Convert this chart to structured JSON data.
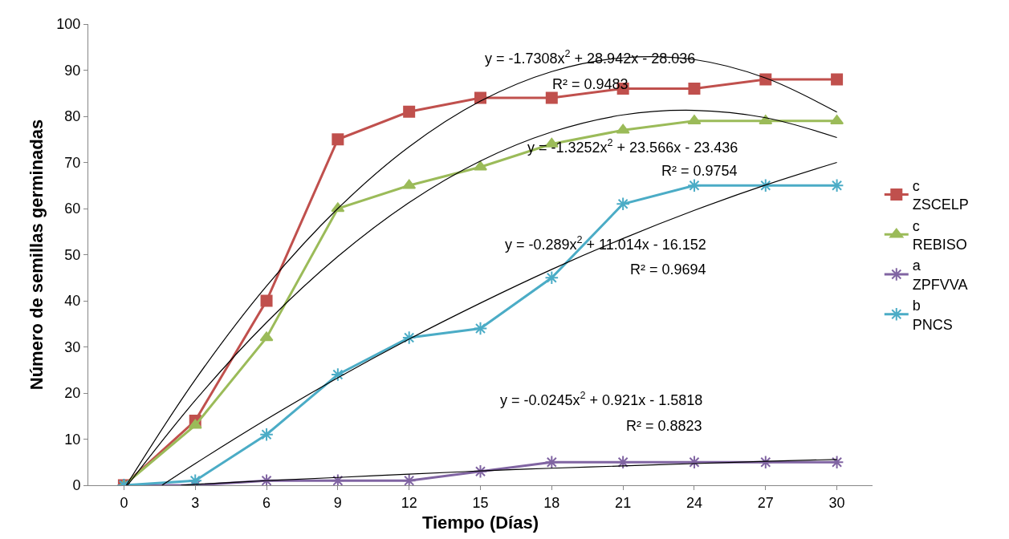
{
  "chart_data": {
    "type": "line",
    "xlabel": "Tiempo (Días)",
    "ylabel": "Número de semillas germinadas",
    "x": [
      0,
      3,
      6,
      9,
      12,
      15,
      18,
      21,
      24,
      27,
      30
    ],
    "xlim": [
      -1.5,
      31.5
    ],
    "xticks": [
      0,
      3,
      6,
      9,
      12,
      15,
      18,
      21,
      24,
      27,
      30
    ],
    "ylim": [
      0,
      100
    ],
    "yticks": [
      0,
      10,
      20,
      30,
      40,
      50,
      60,
      70,
      80,
      90,
      100
    ],
    "grid": false,
    "legend": "right",
    "series": [
      {
        "name": "c\nZSCELP",
        "color": "#c0504d",
        "marker": "square",
        "values": [
          0,
          14,
          40,
          75,
          81,
          84,
          84,
          86,
          86,
          88,
          88
        ]
      },
      {
        "name": "c\nREBISO",
        "color": "#9bbb59",
        "marker": "triangle",
        "values": [
          0,
          13,
          32,
          60,
          65,
          69,
          74,
          77,
          79,
          79,
          79
        ]
      },
      {
        "name": "a\nZPFVVA",
        "color": "#8064a2",
        "marker": "cross",
        "values": [
          0,
          0,
          1,
          1,
          1,
          3,
          5,
          5,
          5,
          5,
          5
        ]
      },
      {
        "name": "b\nPNCS",
        "color": "#4bacc6",
        "marker": "cross",
        "values": [
          0,
          1,
          11,
          24,
          32,
          34,
          45,
          61,
          65,
          65,
          65
        ]
      },
      {
        "type": "line",
        "color": "#000000",
        "marker": "none",
        "x": [
          0.1,
          3,
          6,
          9,
          12,
          15,
          18,
          21,
          24,
          27,
          30
        ],
        "values": [
          0,
          22.9,
          43.2,
          60.0,
          73.4,
          83.3,
          89.7,
          92.7,
          92.3,
          88.3,
          80.9
        ]
      },
      {
        "type": "line",
        "color": "#000000",
        "marker": "none",
        "x": [
          0.15,
          3,
          6,
          9,
          12,
          15,
          18,
          21,
          24,
          27,
          30
        ],
        "values": [
          0,
          18.4,
          35.3,
          49.6,
          61.3,
          70.3,
          76.6,
          80.3,
          81.3,
          79.7,
          75.4
        ]
      },
      {
        "type": "line",
        "color": "#000000",
        "marker": "none",
        "x": [
          1.6,
          3,
          6,
          9,
          12,
          15,
          18,
          21,
          24,
          27,
          30
        ],
        "values": [
          0,
          4.7,
          14.3,
          23.3,
          31.7,
          39.5,
          46.8,
          53.5,
          59.6,
          65.1,
          70.0
        ]
      },
      {
        "type": "line",
        "color": "#000000",
        "marker": "none",
        "x": [
          2.4,
          3,
          6,
          9,
          12,
          15,
          18,
          21,
          24,
          27,
          30
        ],
        "values": [
          0,
          0.2,
          1.0,
          1.7,
          2.4,
          3.1,
          3.7,
          4.2,
          4.7,
          5.2,
          5.6
        ]
      }
    ],
    "annotations": [
      "y = -1.7308x$^{2}$ + 28.942x - 28.036",
      "R² = 0.9483",
      "y = -1.3252x$^{2}$ + 23.566x - 23.436",
      "R² = 0.9754",
      "y = -0.289x$^{2}$ + 11.014x - 16.152",
      "R² = 0.9694",
      "y = -0.0245x$^{2}$ + 0.921x - 1.5818",
      "R² = 0.8823"
    ]
  }
}
